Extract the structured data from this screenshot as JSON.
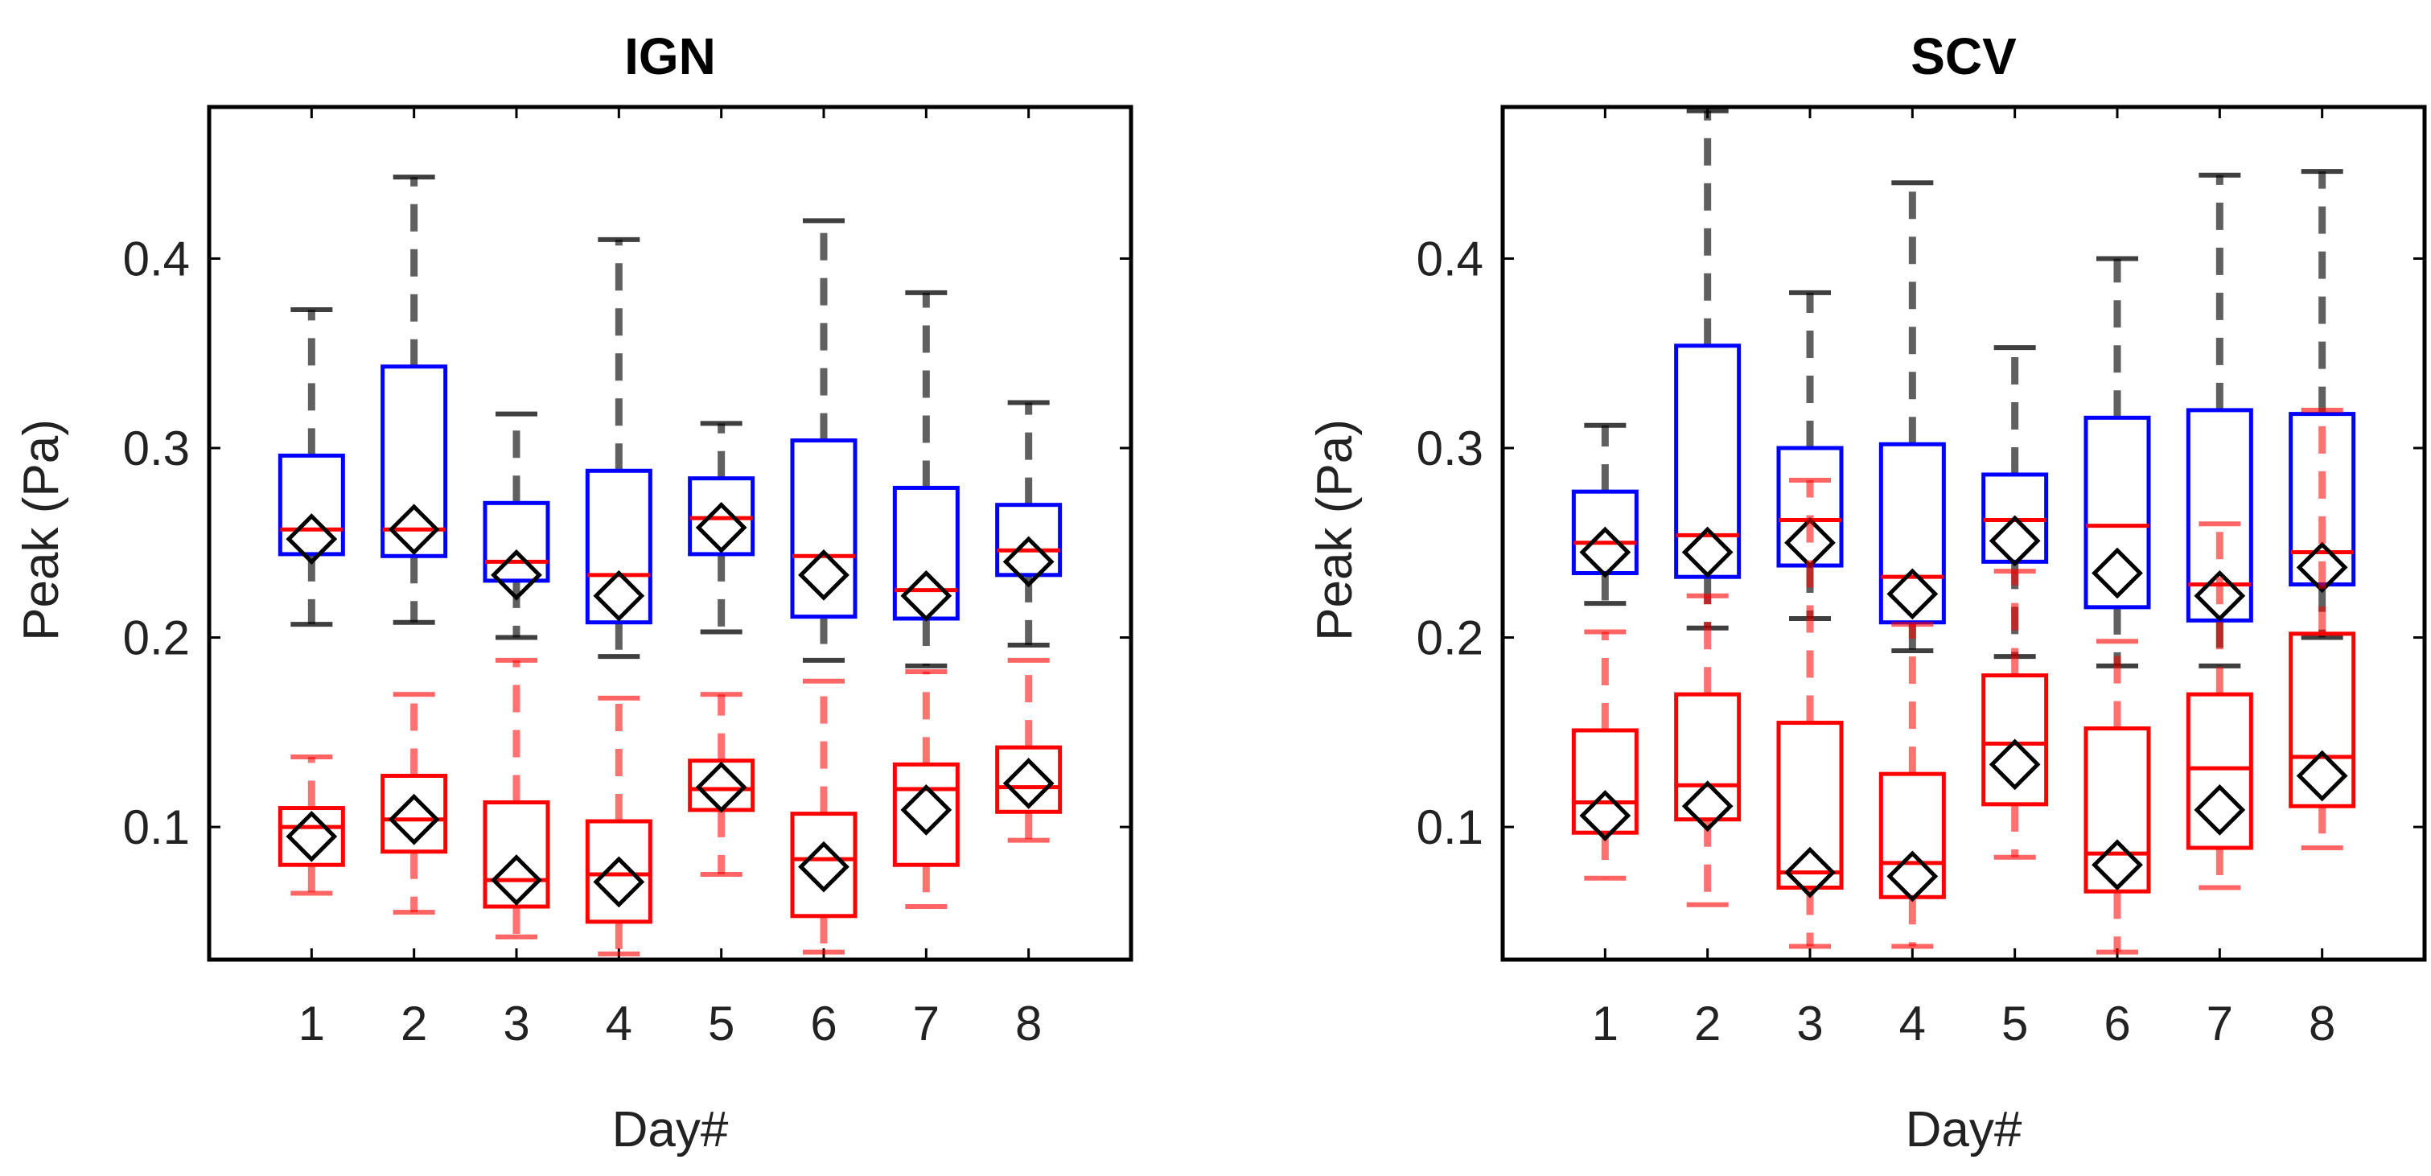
{
  "colors": {
    "blue": "#0000ff",
    "red": "#ff0000",
    "whisker": "#000000",
    "marker": "#000000",
    "axis": "#000000"
  },
  "chart_data": [
    {
      "type": "boxplot",
      "title": "IGN",
      "xlabel": "Day#",
      "ylabel": "Peak (Pa)",
      "categories": [
        "1",
        "2",
        "3",
        "4",
        "5",
        "6",
        "7",
        "8"
      ],
      "ylim": [
        0.03,
        0.48
      ],
      "yticks": [
        0.1,
        0.2,
        0.3,
        0.4
      ],
      "ytick_labels": [
        "0.1",
        "0.2",
        "0.3",
        "0.4"
      ],
      "series": [
        {
          "name": "blue",
          "color": "#0000ff",
          "boxes": [
            {
              "lw": 0.207,
              "q1": 0.244,
              "median": 0.257,
              "q3": 0.296,
              "uw": 0.373,
              "mean": 0.252
            },
            {
              "lw": 0.208,
              "q1": 0.243,
              "median": 0.257,
              "q3": 0.343,
              "uw": 0.443,
              "mean": 0.257
            },
            {
              "lw": 0.2,
              "q1": 0.23,
              "median": 0.24,
              "q3": 0.271,
              "uw": 0.318,
              "mean": 0.233
            },
            {
              "lw": 0.19,
              "q1": 0.208,
              "median": 0.233,
              "q3": 0.288,
              "uw": 0.41,
              "mean": 0.222
            },
            {
              "lw": 0.203,
              "q1": 0.244,
              "median": 0.263,
              "q3": 0.284,
              "uw": 0.313,
              "mean": 0.258
            },
            {
              "lw": 0.188,
              "q1": 0.211,
              "median": 0.243,
              "q3": 0.304,
              "uw": 0.42,
              "mean": 0.233
            },
            {
              "lw": 0.185,
              "q1": 0.21,
              "median": 0.225,
              "q3": 0.279,
              "uw": 0.382,
              "mean": 0.222
            },
            {
              "lw": 0.196,
              "q1": 0.233,
              "median": 0.246,
              "q3": 0.27,
              "uw": 0.324,
              "mean": 0.24
            }
          ]
        },
        {
          "name": "red",
          "color": "#ff0000",
          "boxes": [
            {
              "lw": 0.065,
              "q1": 0.08,
              "median": 0.1,
              "q3": 0.11,
              "uw": 0.137,
              "mean": 0.095
            },
            {
              "lw": 0.055,
              "q1": 0.087,
              "median": 0.104,
              "q3": 0.127,
              "uw": 0.17,
              "mean": 0.104
            },
            {
              "lw": 0.042,
              "q1": 0.058,
              "median": 0.072,
              "q3": 0.113,
              "uw": 0.188,
              "mean": 0.072
            },
            {
              "lw": 0.033,
              "q1": 0.05,
              "median": 0.075,
              "q3": 0.103,
              "uw": 0.168,
              "mean": 0.071
            },
            {
              "lw": 0.075,
              "q1": 0.109,
              "median": 0.12,
              "q3": 0.135,
              "uw": 0.17,
              "mean": 0.121
            },
            {
              "lw": 0.034,
              "q1": 0.053,
              "median": 0.083,
              "q3": 0.107,
              "uw": 0.177,
              "mean": 0.079
            },
            {
              "lw": 0.058,
              "q1": 0.08,
              "median": 0.12,
              "q3": 0.133,
              "uw": 0.182,
              "mean": 0.109
            },
            {
              "lw": 0.093,
              "q1": 0.108,
              "median": 0.121,
              "q3": 0.142,
              "uw": 0.188,
              "mean": 0.123
            }
          ]
        }
      ]
    },
    {
      "type": "boxplot",
      "title": "SCV",
      "xlabel": "Day#",
      "ylabel": "Peak (Pa)",
      "categories": [
        "1",
        "2",
        "3",
        "4",
        "5",
        "6",
        "7",
        "8"
      ],
      "ylim": [
        0.03,
        0.48
      ],
      "yticks": [
        0.1,
        0.2,
        0.3,
        0.4
      ],
      "ytick_labels": [
        "0.1",
        "0.2",
        "0.3",
        "0.4"
      ],
      "series": [
        {
          "name": "blue",
          "color": "#0000ff",
          "boxes": [
            {
              "lw": 0.218,
              "q1": 0.234,
              "median": 0.25,
              "q3": 0.277,
              "uw": 0.312,
              "mean": 0.245
            },
            {
              "lw": 0.205,
              "q1": 0.232,
              "median": 0.254,
              "q3": 0.354,
              "uw": 0.478,
              "mean": 0.245
            },
            {
              "lw": 0.21,
              "q1": 0.238,
              "median": 0.262,
              "q3": 0.3,
              "uw": 0.382,
              "mean": 0.25
            },
            {
              "lw": 0.193,
              "q1": 0.208,
              "median": 0.232,
              "q3": 0.302,
              "uw": 0.44,
              "mean": 0.223
            },
            {
              "lw": 0.19,
              "q1": 0.24,
              "median": 0.262,
              "q3": 0.286,
              "uw": 0.353,
              "mean": 0.251
            },
            {
              "lw": 0.185,
              "q1": 0.216,
              "median": 0.259,
              "q3": 0.316,
              "uw": 0.4,
              "mean": 0.234
            },
            {
              "lw": 0.185,
              "q1": 0.209,
              "median": 0.228,
              "q3": 0.32,
              "uw": 0.444,
              "mean": 0.222
            },
            {
              "lw": 0.2,
              "q1": 0.228,
              "median": 0.245,
              "q3": 0.318,
              "uw": 0.446,
              "mean": 0.237
            }
          ]
        },
        {
          "name": "red",
          "color": "#ff0000",
          "boxes": [
            {
              "lw": 0.073,
              "q1": 0.097,
              "median": 0.113,
              "q3": 0.151,
              "uw": 0.203,
              "mean": 0.106
            },
            {
              "lw": 0.059,
              "q1": 0.104,
              "median": 0.122,
              "q3": 0.17,
              "uw": 0.222,
              "mean": 0.111
            },
            {
              "lw": 0.037,
              "q1": 0.068,
              "median": 0.076,
              "q3": 0.155,
              "uw": 0.283,
              "mean": 0.076
            },
            {
              "lw": 0.037,
              "q1": 0.063,
              "median": 0.081,
              "q3": 0.128,
              "uw": 0.207,
              "mean": 0.074
            },
            {
              "lw": 0.084,
              "q1": 0.112,
              "median": 0.144,
              "q3": 0.18,
              "uw": 0.235,
              "mean": 0.133
            },
            {
              "lw": 0.034,
              "q1": 0.066,
              "median": 0.086,
              "q3": 0.152,
              "uw": 0.198,
              "mean": 0.08
            },
            {
              "lw": 0.068,
              "q1": 0.089,
              "median": 0.131,
              "q3": 0.17,
              "uw": 0.26,
              "mean": 0.109
            },
            {
              "lw": 0.089,
              "q1": 0.111,
              "median": 0.137,
              "q3": 0.202,
              "uw": 0.32,
              "mean": 0.127
            }
          ]
        }
      ]
    }
  ]
}
